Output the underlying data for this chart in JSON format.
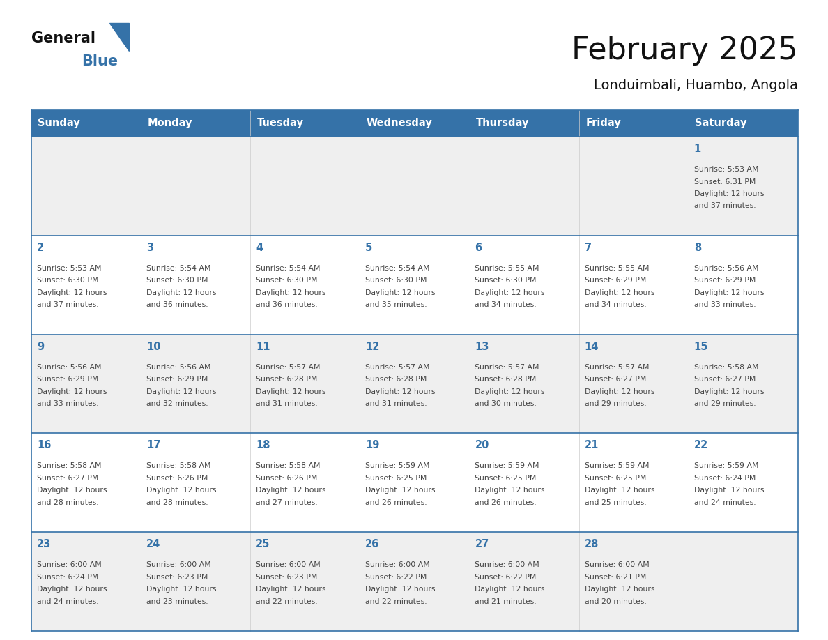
{
  "title": "February 2025",
  "subtitle": "Londuimbali, Huambo, Angola",
  "days_of_week": [
    "Sunday",
    "Monday",
    "Tuesday",
    "Wednesday",
    "Thursday",
    "Friday",
    "Saturday"
  ],
  "header_bg": "#3572A8",
  "header_text": "#FFFFFF",
  "cell_bg_light": "#EFEFEF",
  "cell_bg_white": "#FFFFFF",
  "day_number_color": "#3572A8",
  "info_text_color": "#444444",
  "line_color": "#3572A8",
  "title_color": "#111111",
  "subtitle_color": "#111111",
  "logo_general_color": "#111111",
  "logo_blue_color": "#3572A8",
  "calendar_data": [
    [
      null,
      null,
      null,
      null,
      null,
      null,
      {
        "day": 1,
        "sunrise": "5:53 AM",
        "sunset": "6:31 PM",
        "daylight_hours": 12,
        "daylight_minutes": "37 minutes."
      }
    ],
    [
      {
        "day": 2,
        "sunrise": "5:53 AM",
        "sunset": "6:30 PM",
        "daylight_hours": 12,
        "daylight_minutes": "37 minutes."
      },
      {
        "day": 3,
        "sunrise": "5:54 AM",
        "sunset": "6:30 PM",
        "daylight_hours": 12,
        "daylight_minutes": "36 minutes."
      },
      {
        "day": 4,
        "sunrise": "5:54 AM",
        "sunset": "6:30 PM",
        "daylight_hours": 12,
        "daylight_minutes": "36 minutes."
      },
      {
        "day": 5,
        "sunrise": "5:54 AM",
        "sunset": "6:30 PM",
        "daylight_hours": 12,
        "daylight_minutes": "35 minutes."
      },
      {
        "day": 6,
        "sunrise": "5:55 AM",
        "sunset": "6:30 PM",
        "daylight_hours": 12,
        "daylight_minutes": "34 minutes."
      },
      {
        "day": 7,
        "sunrise": "5:55 AM",
        "sunset": "6:29 PM",
        "daylight_hours": 12,
        "daylight_minutes": "34 minutes."
      },
      {
        "day": 8,
        "sunrise": "5:56 AM",
        "sunset": "6:29 PM",
        "daylight_hours": 12,
        "daylight_minutes": "33 minutes."
      }
    ],
    [
      {
        "day": 9,
        "sunrise": "5:56 AM",
        "sunset": "6:29 PM",
        "daylight_hours": 12,
        "daylight_minutes": "33 minutes."
      },
      {
        "day": 10,
        "sunrise": "5:56 AM",
        "sunset": "6:29 PM",
        "daylight_hours": 12,
        "daylight_minutes": "32 minutes."
      },
      {
        "day": 11,
        "sunrise": "5:57 AM",
        "sunset": "6:28 PM",
        "daylight_hours": 12,
        "daylight_minutes": "31 minutes."
      },
      {
        "day": 12,
        "sunrise": "5:57 AM",
        "sunset": "6:28 PM",
        "daylight_hours": 12,
        "daylight_minutes": "31 minutes."
      },
      {
        "day": 13,
        "sunrise": "5:57 AM",
        "sunset": "6:28 PM",
        "daylight_hours": 12,
        "daylight_minutes": "30 minutes."
      },
      {
        "day": 14,
        "sunrise": "5:57 AM",
        "sunset": "6:27 PM",
        "daylight_hours": 12,
        "daylight_minutes": "29 minutes."
      },
      {
        "day": 15,
        "sunrise": "5:58 AM",
        "sunset": "6:27 PM",
        "daylight_hours": 12,
        "daylight_minutes": "29 minutes."
      }
    ],
    [
      {
        "day": 16,
        "sunrise": "5:58 AM",
        "sunset": "6:27 PM",
        "daylight_hours": 12,
        "daylight_minutes": "28 minutes."
      },
      {
        "day": 17,
        "sunrise": "5:58 AM",
        "sunset": "6:26 PM",
        "daylight_hours": 12,
        "daylight_minutes": "28 minutes."
      },
      {
        "day": 18,
        "sunrise": "5:58 AM",
        "sunset": "6:26 PM",
        "daylight_hours": 12,
        "daylight_minutes": "27 minutes."
      },
      {
        "day": 19,
        "sunrise": "5:59 AM",
        "sunset": "6:25 PM",
        "daylight_hours": 12,
        "daylight_minutes": "26 minutes."
      },
      {
        "day": 20,
        "sunrise": "5:59 AM",
        "sunset": "6:25 PM",
        "daylight_hours": 12,
        "daylight_minutes": "26 minutes."
      },
      {
        "day": 21,
        "sunrise": "5:59 AM",
        "sunset": "6:25 PM",
        "daylight_hours": 12,
        "daylight_minutes": "25 minutes."
      },
      {
        "day": 22,
        "sunrise": "5:59 AM",
        "sunset": "6:24 PM",
        "daylight_hours": 12,
        "daylight_minutes": "24 minutes."
      }
    ],
    [
      {
        "day": 23,
        "sunrise": "6:00 AM",
        "sunset": "6:24 PM",
        "daylight_hours": 12,
        "daylight_minutes": "24 minutes."
      },
      {
        "day": 24,
        "sunrise": "6:00 AM",
        "sunset": "6:23 PM",
        "daylight_hours": 12,
        "daylight_minutes": "23 minutes."
      },
      {
        "day": 25,
        "sunrise": "6:00 AM",
        "sunset": "6:23 PM",
        "daylight_hours": 12,
        "daylight_minutes": "22 minutes."
      },
      {
        "day": 26,
        "sunrise": "6:00 AM",
        "sunset": "6:22 PM",
        "daylight_hours": 12,
        "daylight_minutes": "22 minutes."
      },
      {
        "day": 27,
        "sunrise": "6:00 AM",
        "sunset": "6:22 PM",
        "daylight_hours": 12,
        "daylight_minutes": "21 minutes."
      },
      {
        "day": 28,
        "sunrise": "6:00 AM",
        "sunset": "6:21 PM",
        "daylight_hours": 12,
        "daylight_minutes": "20 minutes."
      },
      null
    ]
  ]
}
